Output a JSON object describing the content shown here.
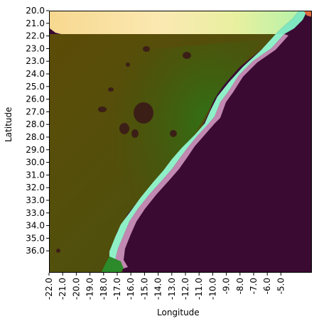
{
  "figure": {
    "xlabel": "Longitude",
    "ylabel": "Latitude"
  },
  "chart_data": {
    "type": "heatmap",
    "title": "",
    "xlabel": "Longitude",
    "ylabel": "Latitude",
    "x_ticks": [
      "-22.0",
      "-21.0",
      "-20.0",
      "-19.0",
      "-18.0",
      "-17.0",
      "-16.0",
      "-15.0",
      "-14.0",
      "-13.0",
      "-12.0",
      "-11.0",
      "-10.0",
      "-9.0",
      "-8.0",
      "-7.0",
      "-6.0",
      "-5.0"
    ],
    "y_ticks": [
      "20.0",
      "21.0",
      "22.0",
      "23.0",
      "23.0",
      "24.0",
      "25.0",
      "26.0",
      "27.0",
      "28.0",
      "28.0",
      "29.0",
      "30.0",
      "31.0",
      "32.0",
      "33.0",
      "33.0",
      "34.0",
      "35.0",
      "36.0"
    ],
    "xlim": [
      -22.4,
      -3.8
    ],
    "ylim": [
      37.4,
      20.0
    ],
    "grid": false,
    "colors": {
      "ocean": "#3a0a33",
      "land_dark": "#5a4a06",
      "land_green": "#2f6a12",
      "coast_aqua": "#8ff0c8",
      "coast_pink": "#d9a0c8",
      "north_band": "#f5d88a",
      "north_band_light": "#fff2b0"
    },
    "regions": [
      {
        "name": "ocean",
        "value": "low"
      },
      {
        "name": "land",
        "value": "medium"
      },
      {
        "name": "coastal strip",
        "value": "high"
      },
      {
        "name": "northern band",
        "value": "high"
      }
    ]
  }
}
